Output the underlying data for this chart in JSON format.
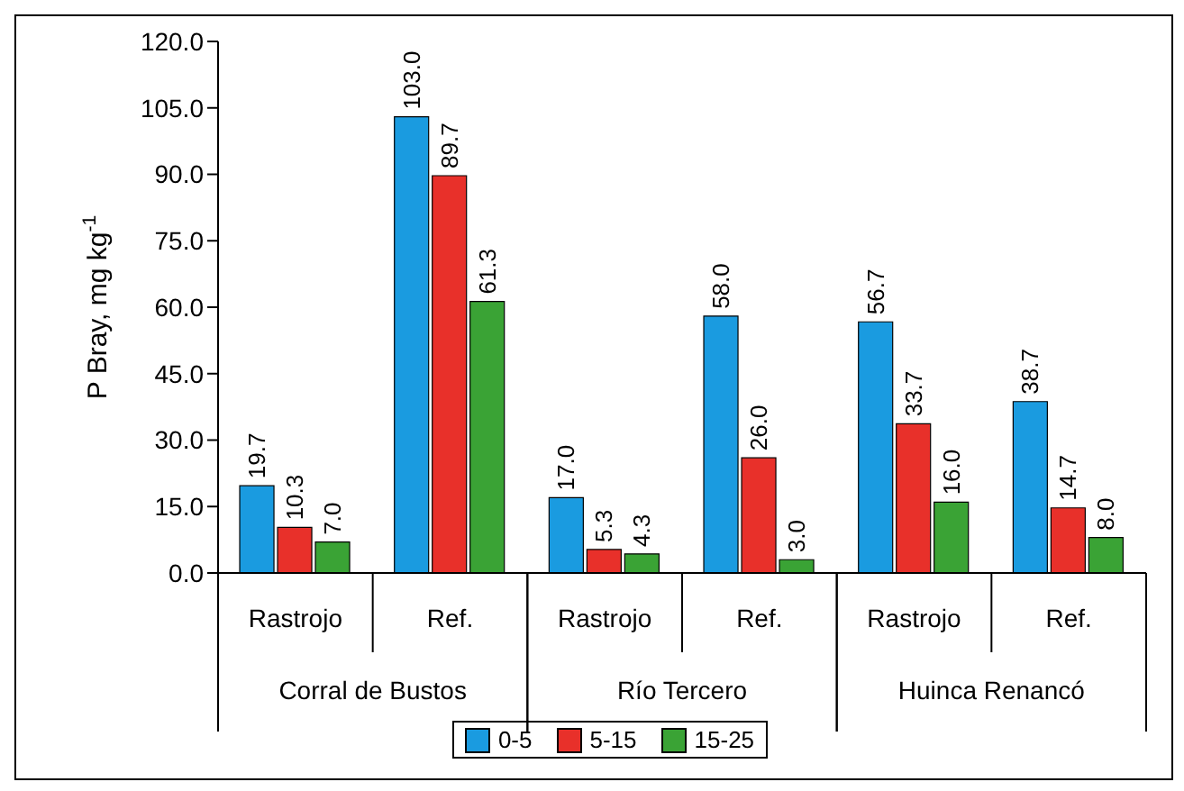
{
  "chart_data": {
    "type": "bar",
    "ylabel": "P Bray, mg kg$^{-1}$",
    "categories": [
      "Rastrojo",
      "Ref.",
      "Rastrojo",
      "Ref.",
      "Rastrojo",
      "Ref."
    ],
    "annotations": [
      "Corral de Bustos",
      "Río Tercero",
      "Huinca Renancó"
    ],
    "series": [
      {
        "name": "0-5",
        "color": "#1a9be0",
        "values": [
          19.7,
          103.0,
          17.0,
          58.0,
          56.7,
          38.7
        ],
        "value_labels": [
          "19.7",
          "103.0",
          "17.0",
          "58.0",
          "56.7",
          "38.7"
        ]
      },
      {
        "name": "5-15",
        "color": "#e8302a",
        "values": [
          10.3,
          89.7,
          5.3,
          26.0,
          33.7,
          14.7
        ],
        "value_labels": [
          "10.3",
          "89.7",
          "5.3",
          "26.0",
          "33.7",
          "14.7"
        ]
      },
      {
        "name": "15-25",
        "color": "#3aa335",
        "values": [
          7.0,
          61.3,
          4.3,
          3.0,
          16.0,
          8.0
        ],
        "value_labels": [
          "7.0",
          "61.3",
          "4.3",
          "3.0",
          "16.0",
          "8.0"
        ]
      }
    ],
    "ylim": [
      0,
      120
    ],
    "yticks": [
      {
        "value": 0,
        "label": "0.0"
      },
      {
        "value": 15,
        "label": "15.0"
      },
      {
        "value": 30,
        "label": "30.0"
      },
      {
        "value": 45,
        "label": "45.0"
      },
      {
        "value": 60,
        "label": "60.0"
      },
      {
        "value": 75,
        "label": "75.0"
      },
      {
        "value": 90,
        "label": "90.0"
      },
      {
        "value": 105,
        "label": "105.0"
      },
      {
        "value": 120,
        "label": "120.0"
      }
    ],
    "grid": false,
    "legend": "bottom"
  }
}
